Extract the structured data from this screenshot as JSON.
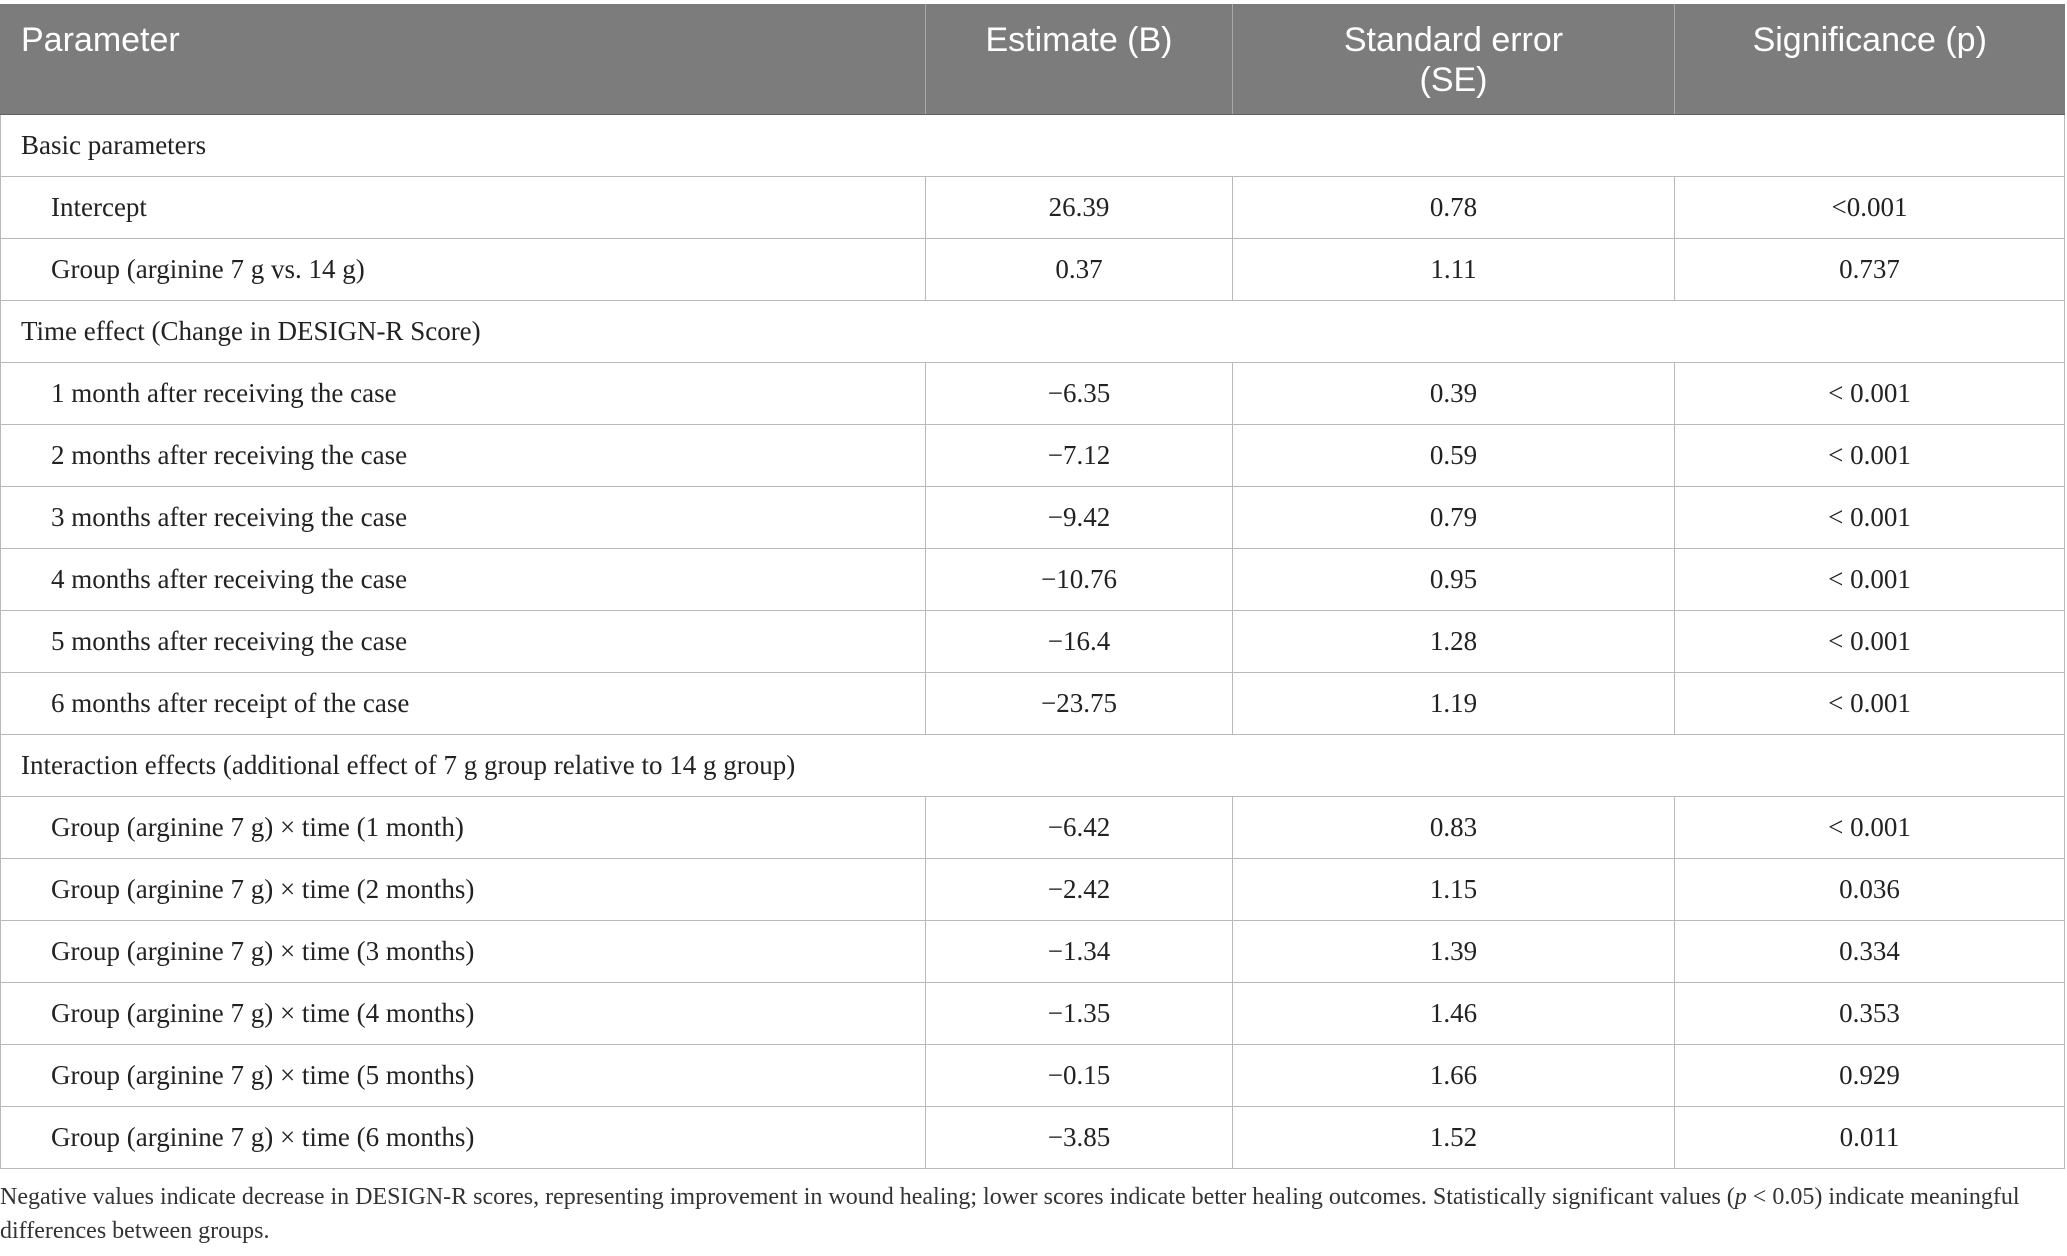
{
  "headers": {
    "parameter": "Parameter",
    "estimate": "Estimate (B)",
    "se_line1": "Standard error",
    "se_line2": "(SE)",
    "significance": "Significance (p)"
  },
  "sections": {
    "basic": "Basic parameters",
    "time": "Time effect (Change in DESIGN-R Score)",
    "interaction": "Interaction effects (additional effect of 7 g group relative to 14 g group)"
  },
  "rows": {
    "basic": [
      {
        "parameter": "Intercept",
        "estimate": "26.39",
        "se": "0.78",
        "p": "<0.001"
      },
      {
        "parameter": "Group (arginine 7 g vs. 14 g)",
        "estimate": "0.37",
        "se": "1.11",
        "p": "0.737"
      }
    ],
    "time": [
      {
        "parameter": "1 month after receiving the case",
        "estimate": "−6.35",
        "se": "0.39",
        "p": "< 0.001"
      },
      {
        "parameter": "2 months after receiving the case",
        "estimate": "−7.12",
        "se": "0.59",
        "p": "< 0.001"
      },
      {
        "parameter": "3 months after receiving the case",
        "estimate": "−9.42",
        "se": "0.79",
        "p": "< 0.001"
      },
      {
        "parameter": "4 months after receiving the case",
        "estimate": "−10.76",
        "se": "0.95",
        "p": "< 0.001"
      },
      {
        "parameter": "5 months after receiving the case",
        "estimate": "−16.4",
        "se": "1.28",
        "p": "< 0.001"
      },
      {
        "parameter": "6 months after receipt of the case",
        "estimate": "−23.75",
        "se": "1.19",
        "p": "< 0.001"
      }
    ],
    "interaction": [
      {
        "parameter": "Group (arginine 7 g) × time (1 month)",
        "estimate": "−6.42",
        "se": "0.83",
        "p": "< 0.001"
      },
      {
        "parameter": "Group (arginine 7 g) × time (2 months)",
        "estimate": "−2.42",
        "se": "1.15",
        "p": "0.036"
      },
      {
        "parameter": "Group (arginine 7 g) × time (3 months)",
        "estimate": "−1.34",
        "se": "1.39",
        "p": "0.334"
      },
      {
        "parameter": "Group (arginine 7 g) × time (4 months)",
        "estimate": "−1.35",
        "se": "1.46",
        "p": "0.353"
      },
      {
        "parameter": "Group (arginine 7 g) × time (5 months)",
        "estimate": "−0.15",
        "se": "1.66",
        "p": "0.929"
      },
      {
        "parameter": "Group (arginine 7 g) × time (6 months)",
        "estimate": "−3.85",
        "se": "1.52",
        "p": "0.011"
      }
    ]
  },
  "footnote": {
    "part1": "Negative values indicate decrease in DESIGN-R scores, representing improvement in wound healing; lower scores indicate better healing outcomes. Statistically significant values (",
    "p_symbol": "p",
    "part2": " < 0.05) indicate meaningful differences between groups."
  }
}
